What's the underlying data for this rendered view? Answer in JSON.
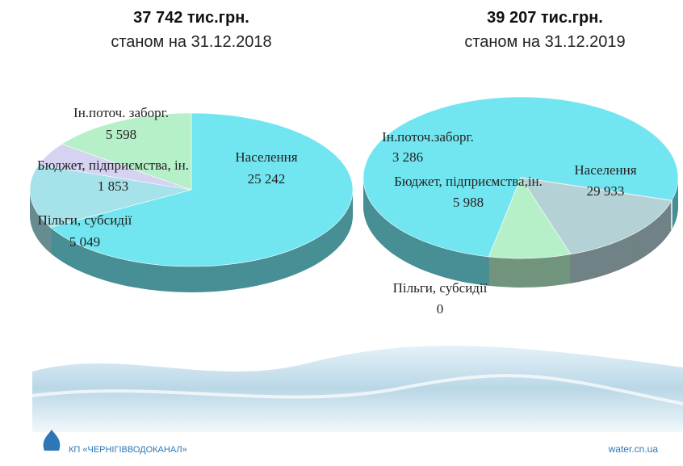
{
  "chart_data": [
    {
      "type": "pie3d",
      "title": "37 742 тис.грн.",
      "subtitle": "станом на 31.12.2018",
      "categories": [
        "Населення",
        "Пільги,  субсидії",
        "Бюджет, підприємства, ін.",
        "Ін.поточ.  заборг."
      ],
      "values": [
        25242,
        5049,
        1853,
        5598
      ],
      "value_labels": [
        "25 242",
        "5 049",
        "1 853",
        "5 598"
      ],
      "colors": [
        "#72e6f0",
        "#a6e2ea",
        "#d6d2f2",
        "#b6f0c8"
      ]
    },
    {
      "type": "pie3d",
      "title": "39 207 тис.грн.",
      "subtitle": "станом на 31.12.2019",
      "categories": [
        "Населення",
        "Пільги,  субсидії",
        "Бюджет, підприємства,ін.",
        "Ін.поточ.заборг."
      ],
      "values": [
        29933,
        0,
        5988,
        3286
      ],
      "value_labels": [
        "29 933",
        "0",
        "5 988",
        "3 286"
      ],
      "colors": [
        "#72e6f0",
        "#cfe0e6",
        "#b4d2d6",
        "#b6f0c8"
      ]
    }
  ],
  "footer": {
    "company": "КП «ЧЕРНІГІВВОДОКАНАЛ»",
    "site": "water.cn.ua"
  }
}
